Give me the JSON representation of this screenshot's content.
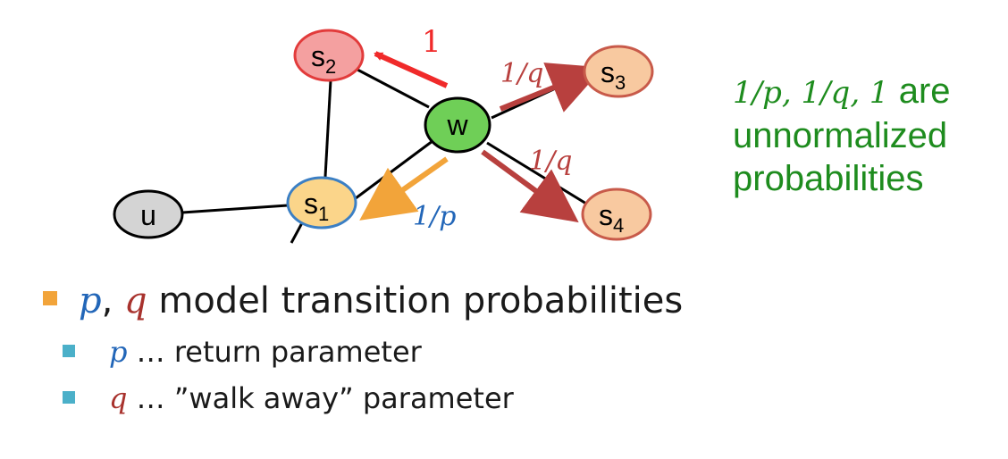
{
  "diagram": {
    "nodes": {
      "u": {
        "label": "u",
        "fill": "#d4d4d4"
      },
      "s1": {
        "label": "s",
        "sub": "1",
        "fill": "#fbd58a",
        "stroke": "#3b7fc4"
      },
      "s2": {
        "label": "s",
        "sub": "2",
        "fill": "#f4a0a0",
        "stroke": "#e23b3b"
      },
      "s3": {
        "label": "s",
        "sub": "3",
        "fill": "#f8c9a0",
        "stroke": "#c85a4a"
      },
      "s4": {
        "label": "s",
        "sub": "4",
        "fill": "#f8c9a0",
        "stroke": "#c85a4a"
      },
      "w": {
        "label": "w",
        "fill": "#6fcf57"
      }
    },
    "edge_labels": {
      "w_s2": "1",
      "w_s3": "1/q",
      "w_s4": "1/q",
      "w_s1": "1/p"
    },
    "colors": {
      "red": "#f02a2a",
      "dark_red": "#b8403e",
      "orange": "#f2a43a",
      "blue": "#2266b8"
    }
  },
  "side_note": {
    "math": "1/p, 1/q, 1",
    "line1_rest": " are",
    "line2": "unnormalized",
    "line3": "probabilities",
    "color": "#1e8c1e"
  },
  "bullets": {
    "main": {
      "p": "p",
      "comma": ", ",
      "q": "q",
      "text": " model transition probabilities"
    },
    "sub": [
      {
        "symbol": "p",
        "text": " … return parameter"
      },
      {
        "symbol": "q",
        "text": " … ”walk away” parameter"
      }
    ]
  }
}
